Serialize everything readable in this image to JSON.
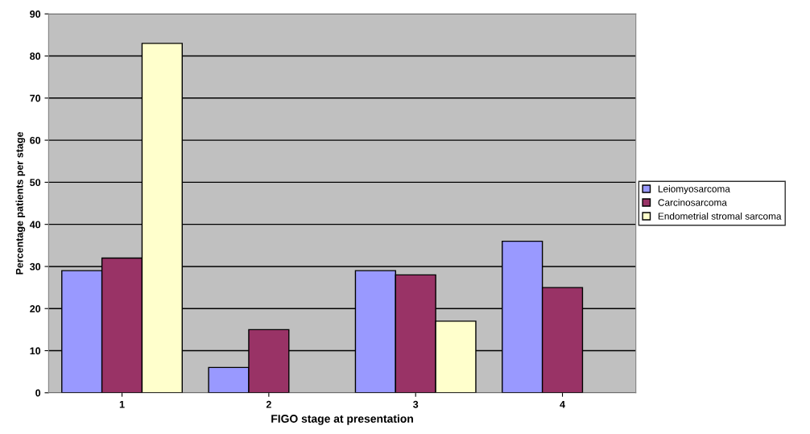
{
  "chart_data": {
    "type": "bar",
    "xlabel": "FIGO stage at presentation",
    "ylabel": "Percentage patients per stage",
    "categories": [
      "1",
      "2",
      "3",
      "4"
    ],
    "series": [
      {
        "name": "Leiomyosarcoma",
        "color": "#9999ff",
        "values": [
          29,
          6,
          29,
          36
        ]
      },
      {
        "name": "Carcinosarcoma",
        "color": "#993366",
        "values": [
          32,
          15,
          28,
          25
        ]
      },
      {
        "name": "Endometrial stromal sarcoma",
        "color": "#ffffcc",
        "values": [
          83,
          null,
          17,
          null
        ]
      }
    ],
    "ylim": [
      0,
      90
    ],
    "yticks": [
      0,
      10,
      20,
      30,
      40,
      50,
      60,
      70,
      80,
      90
    ],
    "grid": "y",
    "legend": "right"
  }
}
